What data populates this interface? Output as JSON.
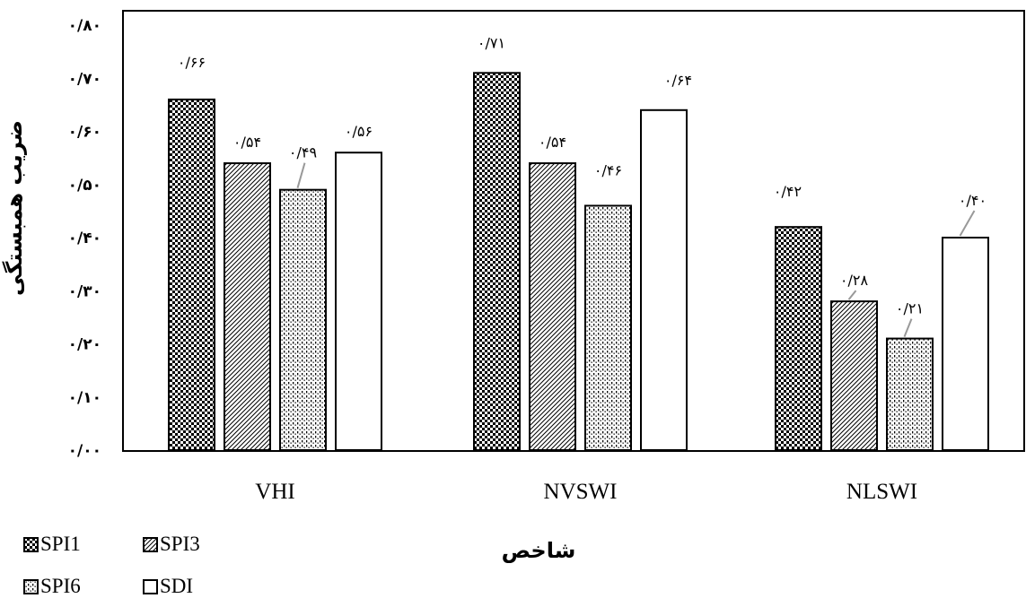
{
  "chart_data": {
    "type": "bar",
    "title": "",
    "xlabel": "شاخص",
    "ylabel": "ضریب همبستگی",
    "ylim": [
      0,
      0.8
    ],
    "yticks": [
      {
        "value": 0.0,
        "label": "۰/۰۰"
      },
      {
        "value": 0.1,
        "label": "۰/۱۰"
      },
      {
        "value": 0.2,
        "label": "۰/۲۰"
      },
      {
        "value": 0.3,
        "label": "۰/۳۰"
      },
      {
        "value": 0.4,
        "label": "۰/۴۰"
      },
      {
        "value": 0.5,
        "label": "۰/۵۰"
      },
      {
        "value": 0.6,
        "label": "۰/۶۰"
      },
      {
        "value": 0.7,
        "label": "۰/۷۰"
      },
      {
        "value": 0.8,
        "label": "۰/۸۰"
      }
    ],
    "categories": [
      "VHI",
      "NVSWI",
      "NLSWI"
    ],
    "series": [
      {
        "name": "SPI1",
        "pattern": "checker",
        "values": [
          0.66,
          0.71,
          0.42
        ],
        "labels": [
          "۰/۶۶",
          "۰/۷۱",
          "۰/۴۲"
        ]
      },
      {
        "name": "SPI3",
        "pattern": "diagonal",
        "values": [
          0.54,
          0.54,
          0.28
        ],
        "labels": [
          "۰/۵۴",
          "۰/۵۴",
          "۰/۲۸"
        ]
      },
      {
        "name": "SPI6",
        "pattern": "dots",
        "values": [
          0.49,
          0.46,
          0.21
        ],
        "labels": [
          "۰/۴۹",
          "۰/۴۶",
          "۰/۲۱"
        ]
      },
      {
        "name": "SDI",
        "pattern": "none",
        "values": [
          0.56,
          0.64,
          0.4
        ],
        "labels": [
          "۰/۵۶",
          "۰/۶۴",
          "۰/۴۰"
        ]
      }
    ],
    "grid": false,
    "legend_placement": "bottom-left"
  }
}
